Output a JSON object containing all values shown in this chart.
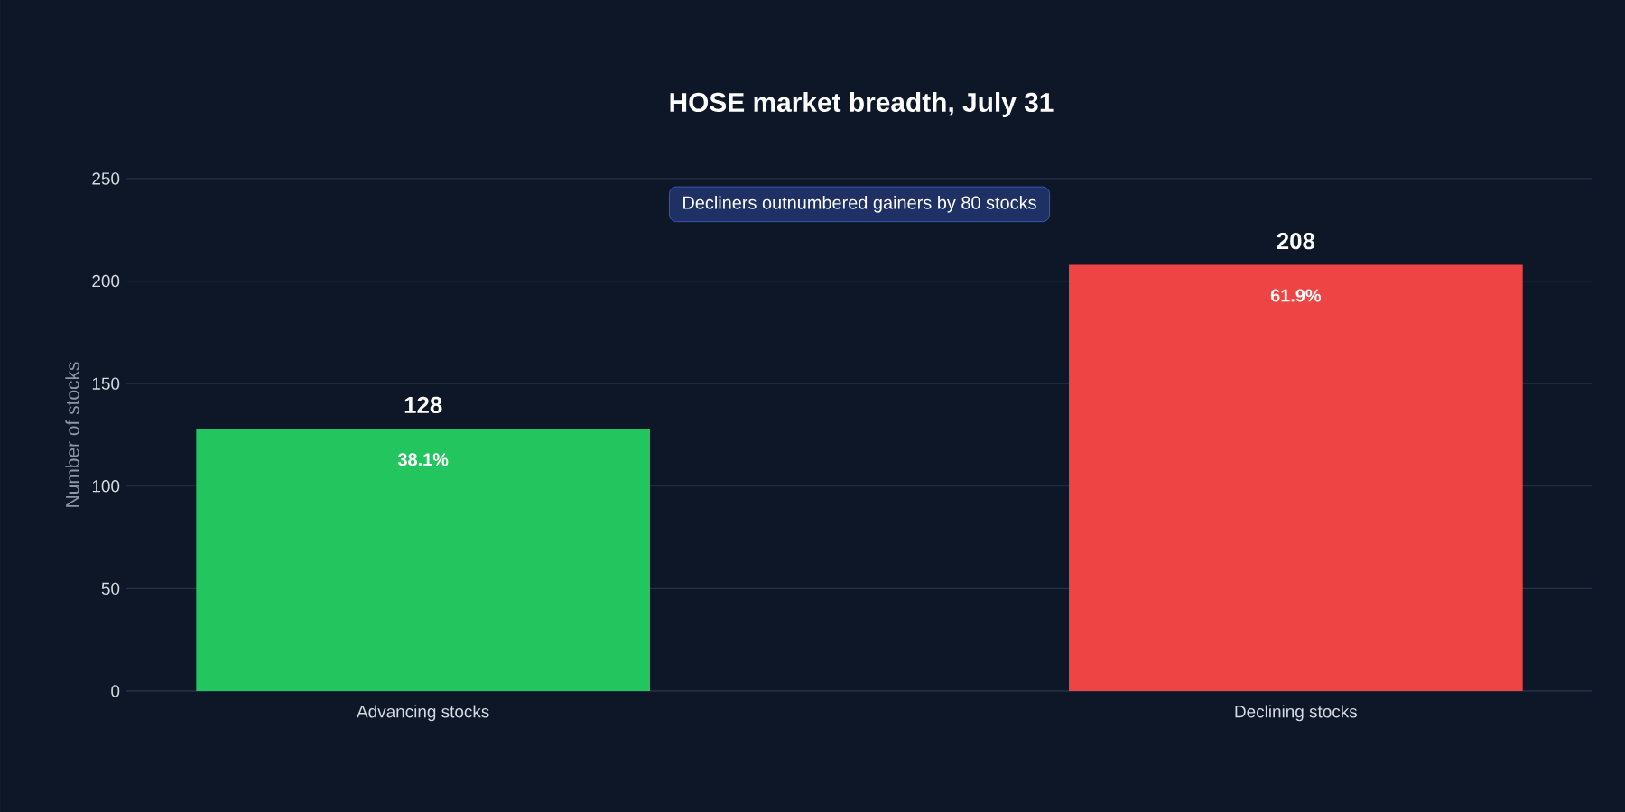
{
  "chart_data": {
    "type": "bar",
    "title": "HOSE market breadth, July 31",
    "ylabel": "Number of stocks",
    "categories": [
      "Advancing stocks",
      "Declining stocks"
    ],
    "values": [
      128,
      208
    ],
    "colors": [
      "#22c55e",
      "#ef4444"
    ],
    "ylim": [
      0,
      250
    ],
    "yticks": [
      0,
      50,
      100,
      150,
      200,
      250
    ],
    "grid": "y",
    "data_labels": true,
    "annotations": [
      "Decliners outnumbered gainers by 80 stocks",
      "38.1%",
      "61.9%"
    ]
  }
}
